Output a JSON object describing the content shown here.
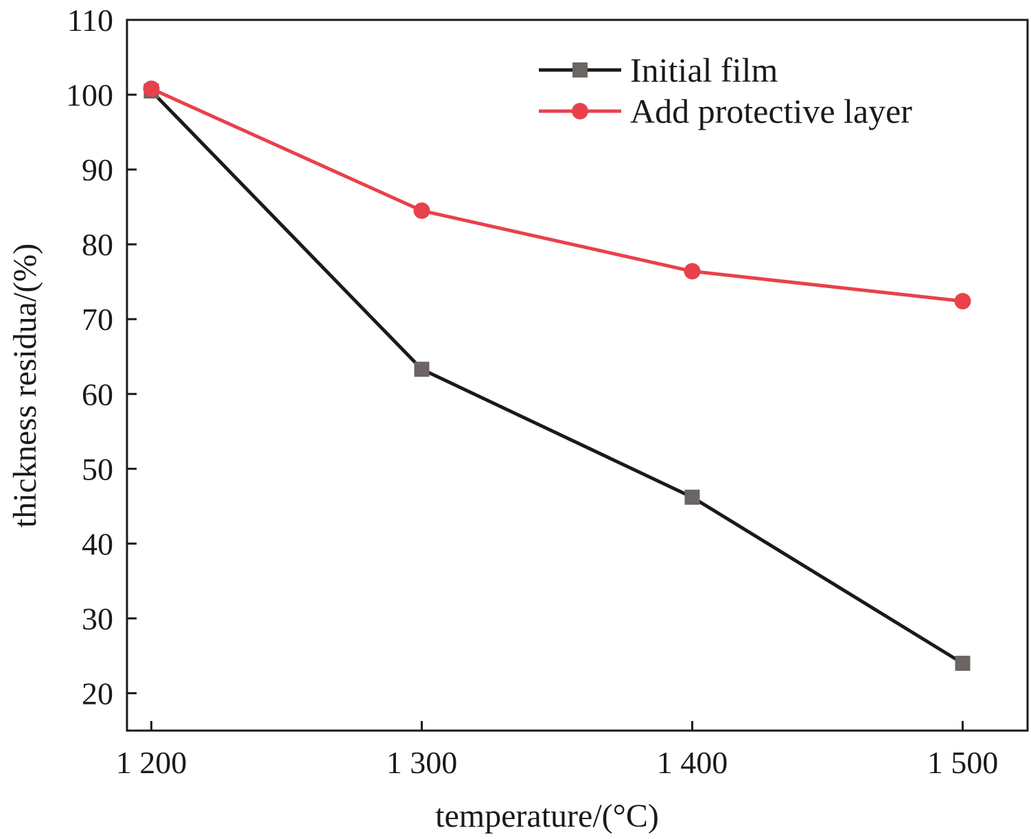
{
  "chart_data": {
    "type": "line",
    "title": "",
    "xlabel": "temperature/(°C)",
    "ylabel": "thickness residua/(%)",
    "x": [
      1200,
      1300,
      1400,
      1500
    ],
    "x_tick_labels": [
      "1 200",
      "1 300",
      "1 400",
      "1 500"
    ],
    "xlim": [
      1191,
      1524
    ],
    "ylim": [
      15,
      110
    ],
    "y_ticks": [
      20,
      30,
      40,
      50,
      60,
      70,
      80,
      90,
      100,
      110
    ],
    "grid": false,
    "legend_position": "top-right",
    "series": [
      {
        "name": "Initial film",
        "marker": "square",
        "color": "#1a1a1a",
        "marker_color": "#6b6563",
        "values": [
          100.5,
          63.3,
          46.2,
          24.0
        ]
      },
      {
        "name": "Add protective layer",
        "marker": "circle",
        "color": "#e8414b",
        "marker_color": "#e8414b",
        "values": [
          100.8,
          84.5,
          76.4,
          72.4
        ]
      }
    ]
  }
}
